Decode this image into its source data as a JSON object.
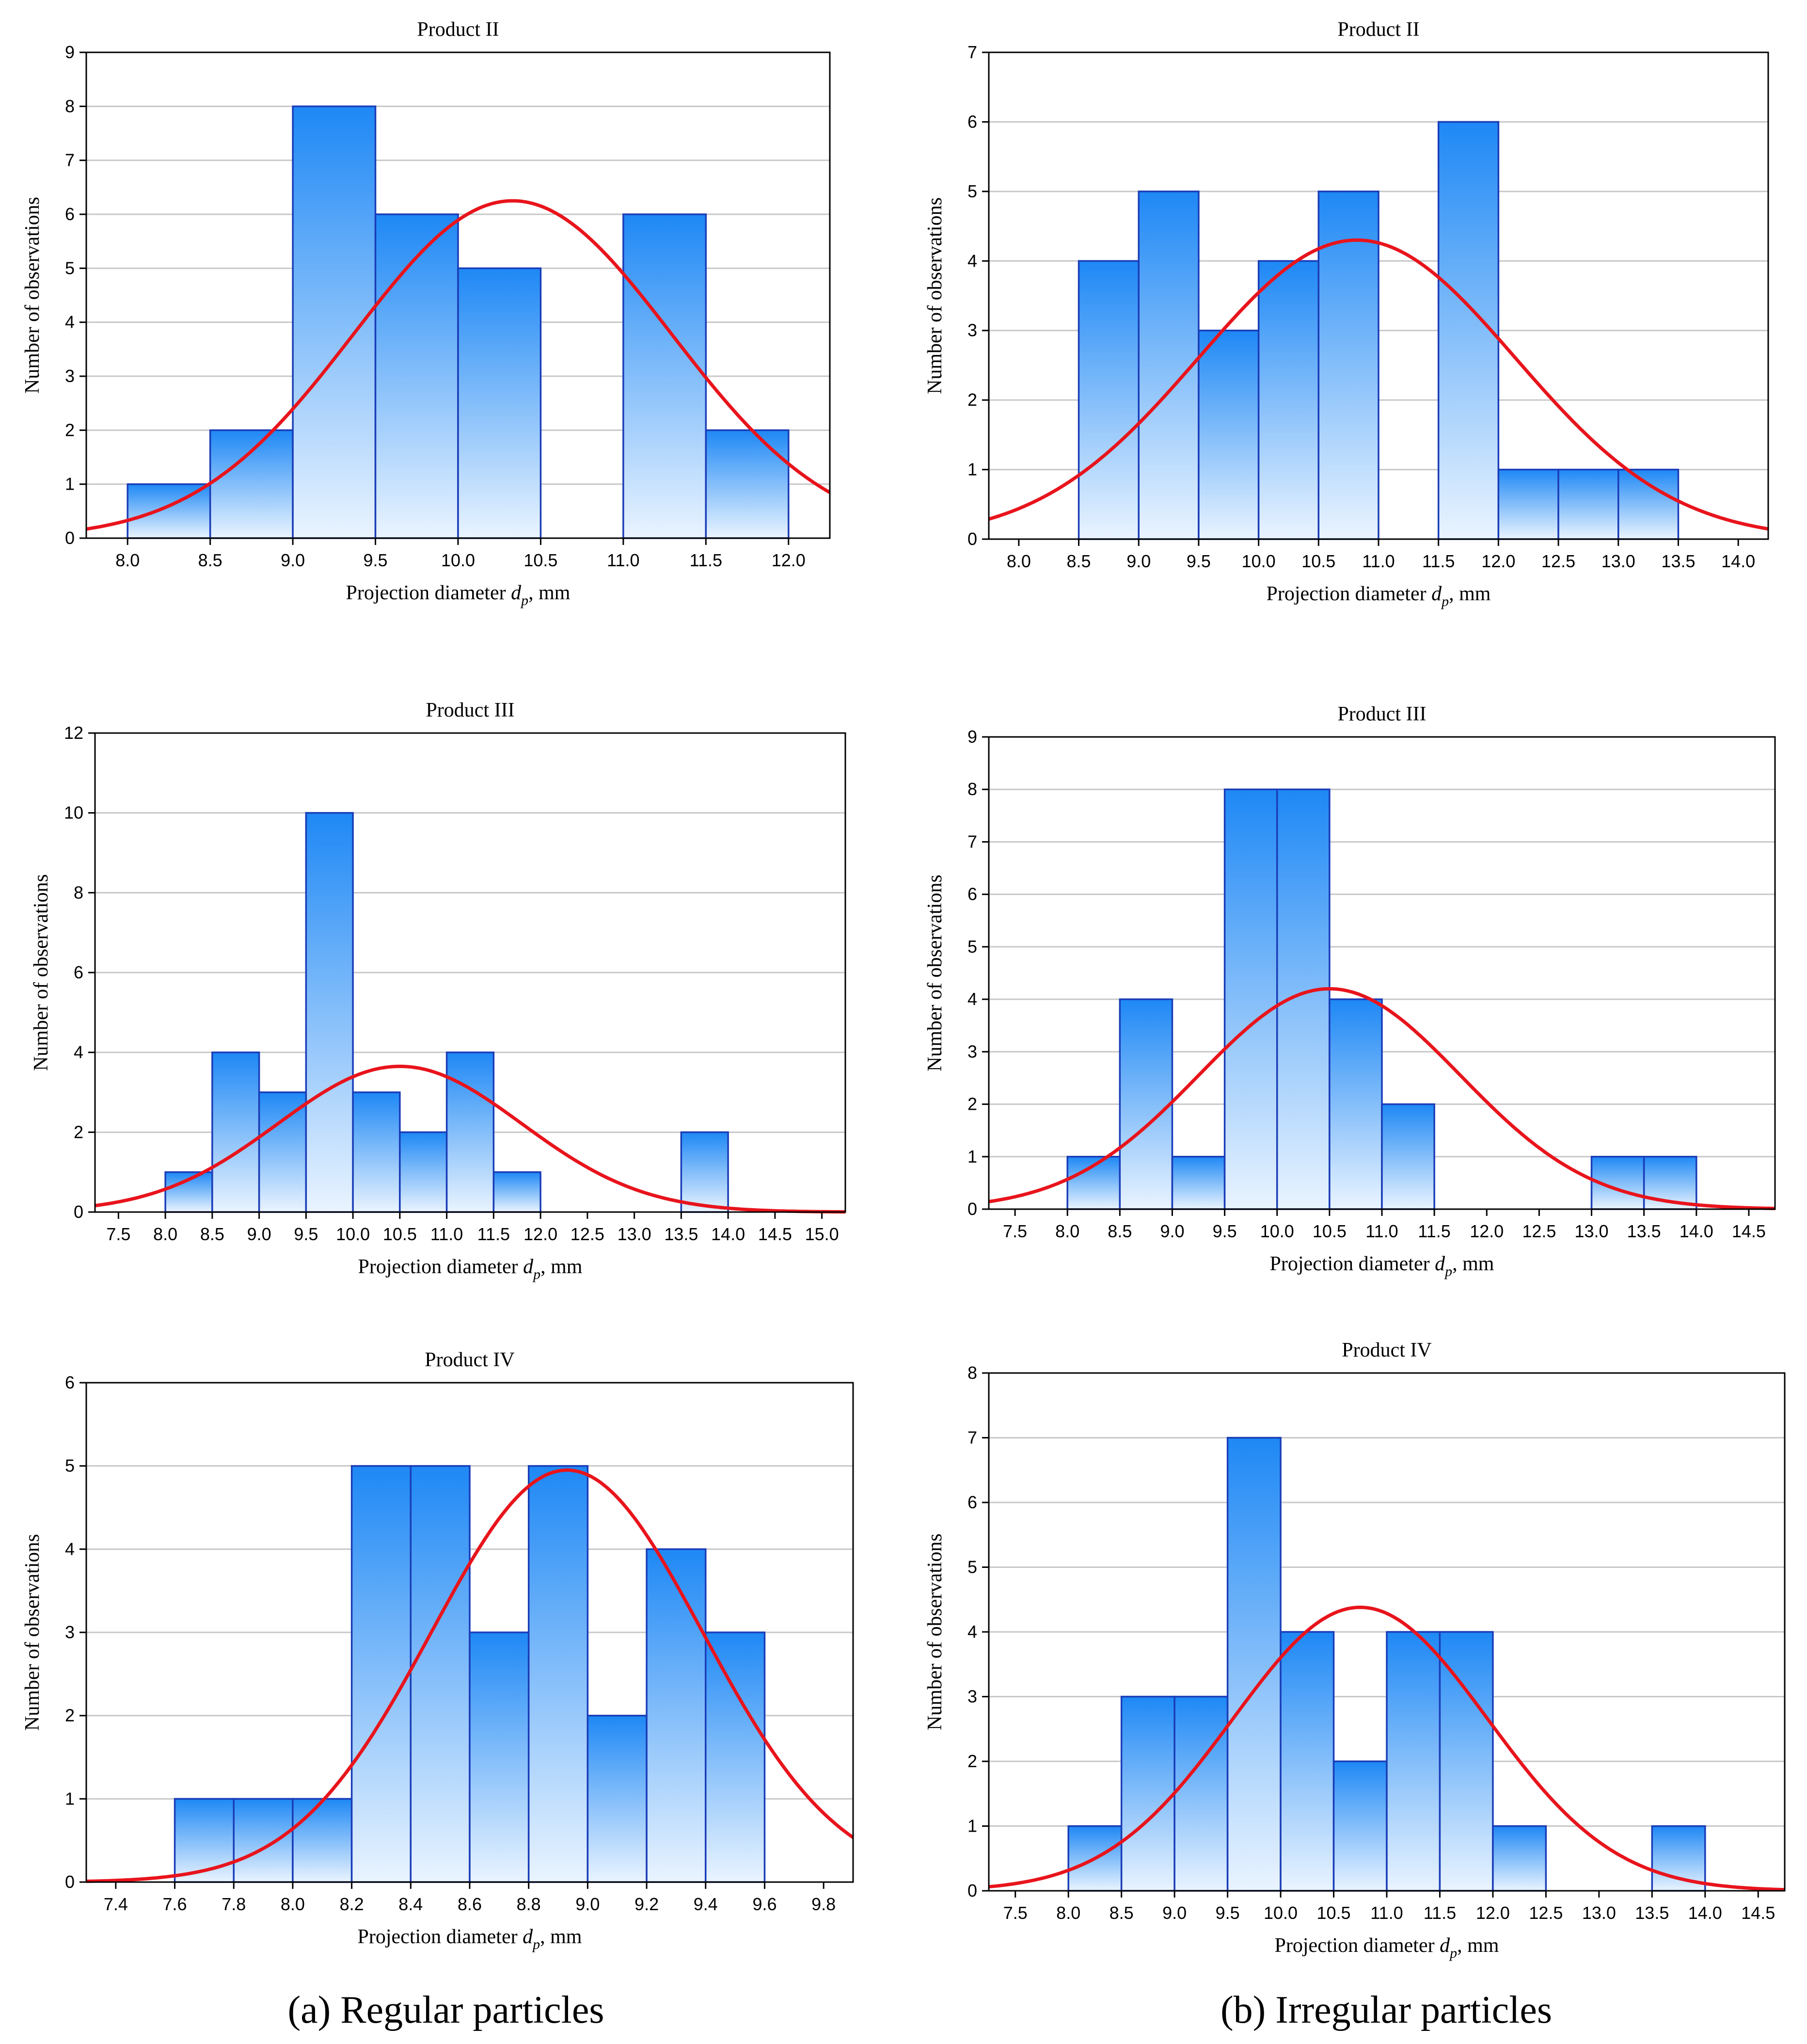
{
  "captions": {
    "left": "(a) Regular particles",
    "right": "(b) Irregular particles"
  },
  "colors": {
    "bar_top": "#1e88f5",
    "bar_bottom": "#eaf4ff",
    "bar_stroke": "#1a3db8",
    "curve": "#e8141c",
    "grid": "#c8c8c8",
    "axis": "#000000"
  },
  "chart_data": [
    {
      "type": "bar",
      "subtype": "histogram-with-normal-fit",
      "title": "Product II",
      "xlabel_main": "Projection diameter ",
      "xlabel_var": "d",
      "xlabel_sub": "p",
      "xlabel_unit": ", mm",
      "ylabel": "Number of observations",
      "xlim": [
        7.75,
        12.25
      ],
      "ylim": [
        0,
        9
      ],
      "xticks": [
        "8.0",
        "8.5",
        "9.0",
        "9.5",
        "10.0",
        "10.5",
        "11.0",
        "11.5",
        "12.0"
      ],
      "yticks": [
        0,
        1,
        2,
        3,
        4,
        5,
        6,
        7,
        8,
        9
      ],
      "bin_width": 0.5,
      "bins": [
        [
          8.0,
          1
        ],
        [
          8.5,
          2
        ],
        [
          9.0,
          8
        ],
        [
          9.5,
          6
        ],
        [
          10.0,
          5
        ],
        [
          10.5,
          0
        ],
        [
          11.0,
          6
        ],
        [
          11.5,
          2
        ]
      ],
      "normal_fit": {
        "mean": 10.33,
        "sd": 0.96,
        "peak": 6.25
      }
    },
    {
      "type": "bar",
      "subtype": "histogram-with-normal-fit",
      "title": "Product II",
      "xlabel_main": "Projection diameter ",
      "xlabel_var": "d",
      "xlabel_sub": "p",
      "xlabel_unit": ", mm",
      "ylabel": "Number of observations",
      "xlim": [
        7.75,
        14.25
      ],
      "ylim": [
        0,
        7
      ],
      "xticks": [
        "8.0",
        "8.5",
        "9.0",
        "9.5",
        "10.0",
        "10.5",
        "11.0",
        "11.5",
        "12.0",
        "12.5",
        "13.0",
        "13.5",
        "14.0"
      ],
      "yticks": [
        0,
        1,
        2,
        3,
        4,
        5,
        6,
        7
      ],
      "bin_width": 0.5,
      "bins": [
        [
          8.5,
          4
        ],
        [
          9.0,
          5
        ],
        [
          9.5,
          3
        ],
        [
          10.0,
          4
        ],
        [
          10.5,
          5
        ],
        [
          11.0,
          0
        ],
        [
          11.5,
          6
        ],
        [
          12.0,
          1
        ],
        [
          12.5,
          1
        ],
        [
          13.0,
          1
        ]
      ],
      "normal_fit": {
        "mean": 10.82,
        "sd": 1.32,
        "peak": 4.3
      }
    },
    {
      "type": "bar",
      "subtype": "histogram-with-normal-fit",
      "title": "Product III",
      "xlabel_main": "Projection diameter ",
      "xlabel_var": "d",
      "xlabel_sub": "p",
      "xlabel_unit": ", mm",
      "ylabel": "Number of observations",
      "xlim": [
        7.25,
        15.25
      ],
      "ylim": [
        0,
        12
      ],
      "xticks": [
        "7.5",
        "8.0",
        "8.5",
        "9.0",
        "9.5",
        "10.0",
        "10.5",
        "11.0",
        "11.5",
        "12.0",
        "12.5",
        "13.0",
        "13.5",
        "14.0",
        "14.5",
        "15.0"
      ],
      "yticks": [
        0,
        2,
        4,
        6,
        8,
        10,
        12
      ],
      "bin_width": 0.5,
      "bins": [
        [
          8.0,
          1
        ],
        [
          8.5,
          4
        ],
        [
          9.0,
          3
        ],
        [
          9.5,
          10
        ],
        [
          10.0,
          3
        ],
        [
          10.5,
          2
        ],
        [
          11.0,
          4
        ],
        [
          11.5,
          1
        ],
        [
          12.0,
          0
        ],
        [
          12.5,
          0
        ],
        [
          13.0,
          0
        ],
        [
          13.5,
          2
        ]
      ],
      "normal_fit": {
        "mean": 10.5,
        "sd": 1.3,
        "peak": 3.65
      }
    },
    {
      "type": "bar",
      "subtype": "histogram-with-normal-fit",
      "title": "Product III",
      "xlabel_main": "Projection diameter ",
      "xlabel_var": "d",
      "xlabel_sub": "p",
      "xlabel_unit": ", mm",
      "ylabel": "Number of observations",
      "xlim": [
        7.25,
        14.75
      ],
      "ylim": [
        0,
        9
      ],
      "xticks": [
        "7.5",
        "8.0",
        "8.5",
        "9.0",
        "9.5",
        "10.0",
        "10.5",
        "11.0",
        "11.5",
        "12.0",
        "12.5",
        "13.0",
        "13.5",
        "14.0",
        "14.5"
      ],
      "yticks": [
        0,
        1,
        2,
        3,
        4,
        5,
        6,
        7,
        8,
        9
      ],
      "bin_width": 0.5,
      "bins": [
        [
          8.0,
          1
        ],
        [
          8.5,
          4
        ],
        [
          9.0,
          1
        ],
        [
          9.5,
          8
        ],
        [
          10.0,
          8
        ],
        [
          10.5,
          4
        ],
        [
          11.0,
          2
        ],
        [
          11.5,
          0
        ],
        [
          12.0,
          0
        ],
        [
          12.5,
          0
        ],
        [
          13.0,
          1
        ],
        [
          13.5,
          1
        ]
      ],
      "normal_fit": {
        "mean": 10.5,
        "sd": 1.25,
        "peak": 4.2
      }
    },
    {
      "type": "bar",
      "subtype": "histogram-with-normal-fit",
      "title": "Product IV",
      "xlabel_main": "Projection diameter ",
      "xlabel_var": "d",
      "xlabel_sub": "p",
      "xlabel_unit": ", mm",
      "ylabel": "Number of observations",
      "xlim": [
        7.3,
        9.9
      ],
      "ylim": [
        0,
        6
      ],
      "xticks": [
        "7.4",
        "7.6",
        "7.8",
        "8.0",
        "8.2",
        "8.4",
        "8.6",
        "8.8",
        "9.0",
        "9.2",
        "9.4",
        "9.6",
        "9.8"
      ],
      "yticks": [
        0,
        1,
        2,
        3,
        4,
        5,
        6
      ],
      "bin_width": 0.2,
      "bins": [
        [
          7.6,
          1
        ],
        [
          7.8,
          1
        ],
        [
          8.0,
          1
        ],
        [
          8.2,
          5
        ],
        [
          8.4,
          5
        ],
        [
          8.6,
          3
        ],
        [
          8.8,
          5
        ],
        [
          9.0,
          2
        ],
        [
          9.2,
          4
        ],
        [
          9.4,
          3
        ]
      ],
      "normal_fit": {
        "mean": 8.93,
        "sd": 0.46,
        "peak": 4.95
      }
    },
    {
      "type": "bar",
      "subtype": "histogram-with-normal-fit",
      "title": "Product IV",
      "xlabel_main": "Projection diameter ",
      "xlabel_var": "d",
      "xlabel_sub": "p",
      "xlabel_unit": ", mm",
      "ylabel": "Number of observations",
      "xlim": [
        7.25,
        14.75
      ],
      "ylim": [
        0,
        8
      ],
      "xticks": [
        "7.5",
        "8.0",
        "8.5",
        "9.0",
        "9.5",
        "10.0",
        "10.5",
        "11.0",
        "11.5",
        "12.0",
        "12.5",
        "13.0",
        "13.5",
        "14.0",
        "14.5"
      ],
      "yticks": [
        0,
        1,
        2,
        3,
        4,
        5,
        6,
        7,
        8
      ],
      "bin_width": 0.5,
      "bins": [
        [
          8.0,
          1
        ],
        [
          8.5,
          3
        ],
        [
          9.0,
          3
        ],
        [
          9.5,
          7
        ],
        [
          10.0,
          4
        ],
        [
          10.5,
          2
        ],
        [
          11.0,
          4
        ],
        [
          11.5,
          4
        ],
        [
          12.0,
          1
        ],
        [
          12.5,
          0
        ],
        [
          13.0,
          0
        ],
        [
          13.5,
          1
        ]
      ],
      "normal_fit": {
        "mean": 10.75,
        "sd": 1.2,
        "peak": 4.38
      }
    }
  ]
}
